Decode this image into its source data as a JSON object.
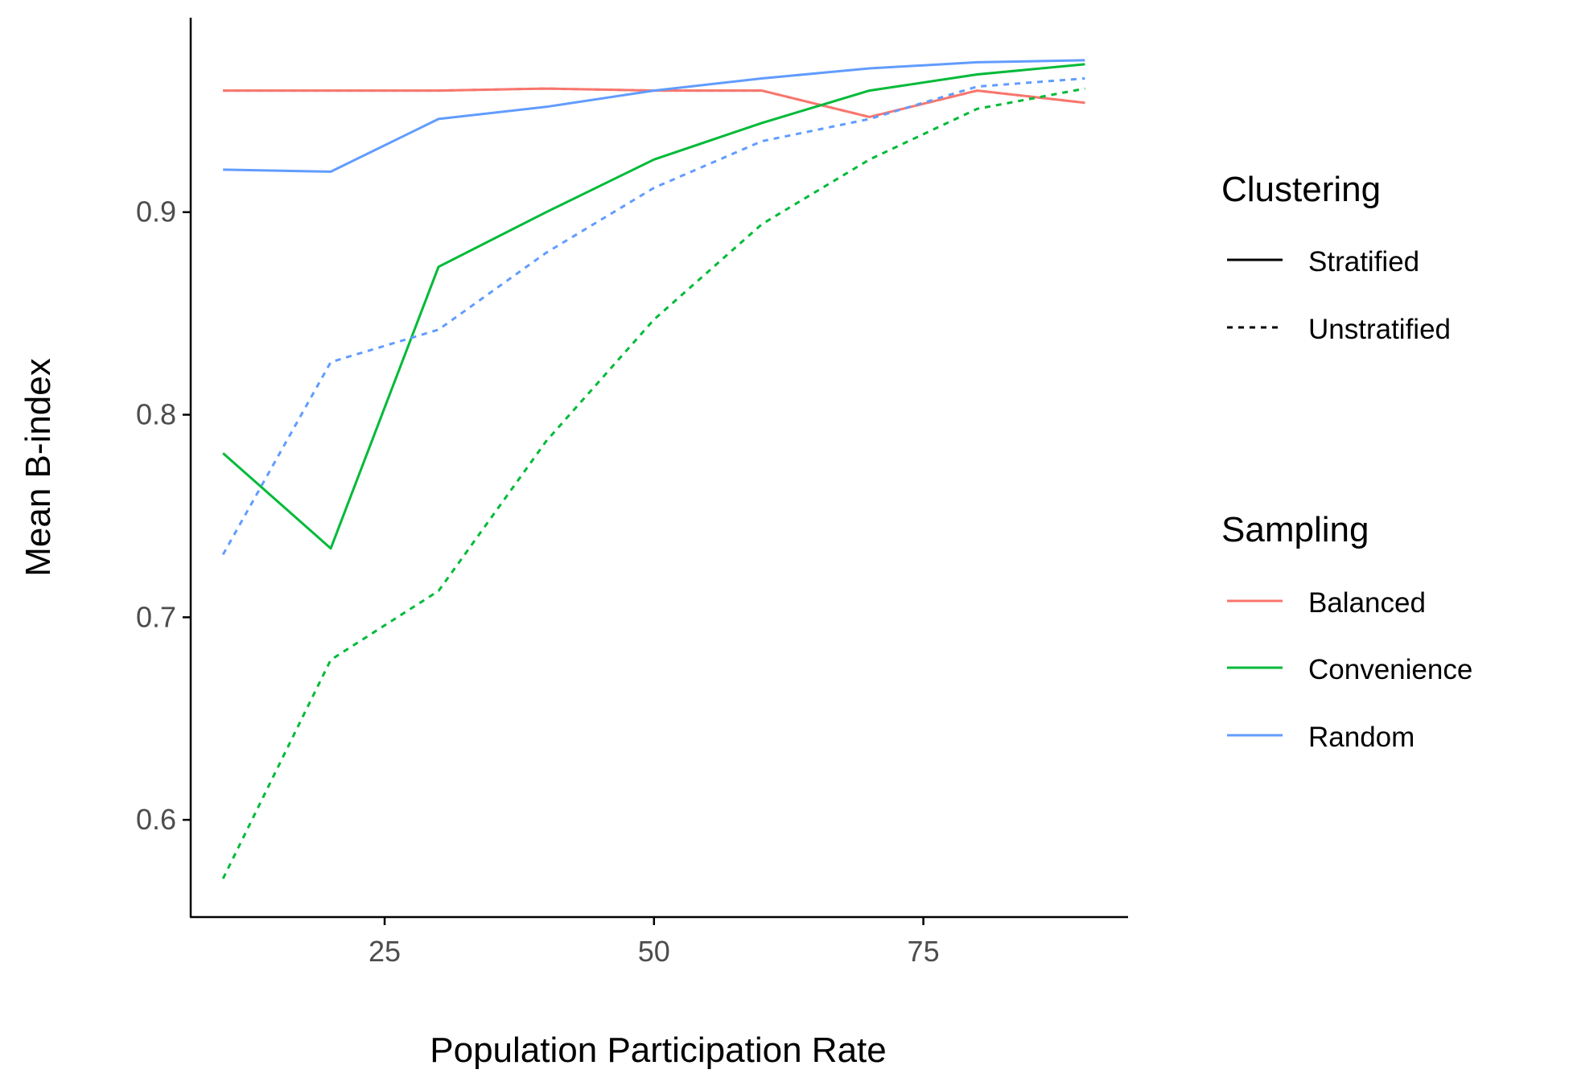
{
  "chart_data": {
    "type": "line",
    "xlabel": "Population Participation Rate",
    "ylabel": "Mean B-index",
    "xlim": [
      7,
      94
    ],
    "ylim": [
      0.552,
      0.996
    ],
    "x_ticks": [
      25,
      50,
      75
    ],
    "y_ticks": [
      0.6,
      0.7,
      0.8,
      0.9
    ],
    "grid": false,
    "legend_placement": "right",
    "x": [
      10,
      20,
      30,
      40,
      50,
      60,
      70,
      80,
      90
    ],
    "series": [
      {
        "sampling": "Balanced",
        "clustering": "Stratified",
        "color": "#F8766D",
        "dash": "solid",
        "values": [
          0.96,
          0.96,
          0.96,
          0.961,
          0.96,
          0.96,
          0.947,
          0.96,
          0.954
        ]
      },
      {
        "sampling": "Balanced",
        "clustering": "Unstratified",
        "color": "#F8766D",
        "dash": "dotted",
        "values": [
          0.96,
          0.96,
          0.96,
          0.961,
          0.96,
          0.96,
          0.947,
          0.96,
          0.954
        ]
      },
      {
        "sampling": "Convenience",
        "clustering": "Stratified",
        "color": "#00BA38",
        "dash": "solid",
        "values": [
          0.781,
          0.734,
          0.873,
          0.9,
          0.926,
          0.944,
          0.96,
          0.968,
          0.973
        ]
      },
      {
        "sampling": "Convenience",
        "clustering": "Unstratified",
        "color": "#00BA38",
        "dash": "dotted",
        "values": [
          0.571,
          0.679,
          0.713,
          0.787,
          0.847,
          0.894,
          0.926,
          0.951,
          0.961
        ]
      },
      {
        "sampling": "Random",
        "clustering": "Stratified",
        "color": "#619CFF",
        "dash": "solid",
        "values": [
          0.921,
          0.92,
          0.946,
          0.952,
          0.96,
          0.966,
          0.971,
          0.974,
          0.975
        ]
      },
      {
        "sampling": "Random",
        "clustering": "Unstratified",
        "color": "#619CFF",
        "dash": "dotted",
        "values": [
          0.731,
          0.826,
          0.842,
          0.88,
          0.912,
          0.935,
          0.946,
          0.962,
          0.966
        ]
      }
    ],
    "legend": {
      "clustering": {
        "title": "Clustering",
        "items": [
          {
            "label": "Stratified",
            "dash": "solid",
            "color": "#000000"
          },
          {
            "label": "Unstratified",
            "dash": "dotted",
            "color": "#000000"
          }
        ]
      },
      "sampling": {
        "title": "Sampling",
        "items": [
          {
            "label": "Balanced",
            "color": "#F8766D"
          },
          {
            "label": "Convenience",
            "color": "#00BA38"
          },
          {
            "label": "Random",
            "color": "#619CFF"
          }
        ]
      }
    }
  }
}
